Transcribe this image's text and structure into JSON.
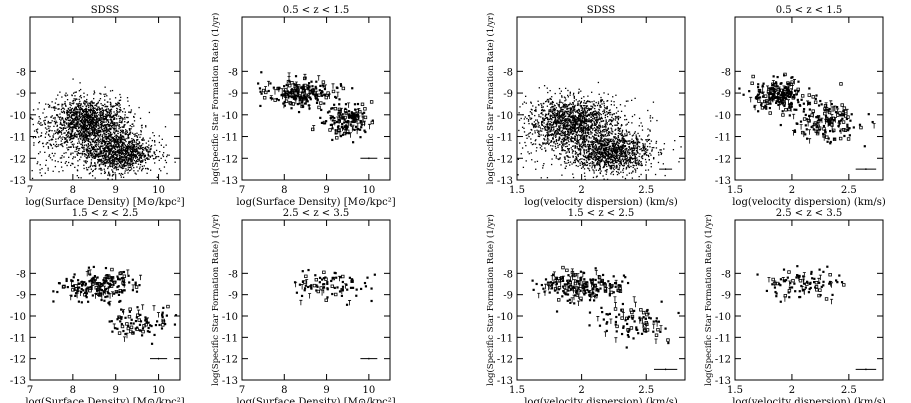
{
  "chart_data": [
    {
      "type": "scatter",
      "id": "p1",
      "title": "SDSS",
      "xlabel": "log(Surface Density) [M⊙/kpc²]",
      "ylabel": "",
      "xlim": [
        7,
        10.5
      ],
      "ylim": [
        -13,
        -5.5
      ],
      "xticks": [
        "7",
        "8",
        "9",
        "10"
      ],
      "yticks": [
        "-8",
        "-9",
        "-10",
        "-11",
        "-12",
        "-13"
      ],
      "ytick_values": [
        -8,
        -9,
        -10,
        -11,
        -12,
        -13
      ],
      "xtick_values": [
        7,
        8,
        9,
        10
      ],
      "clusters": [
        {
          "cx": 8.35,
          "cy": -10.3,
          "sx": 0.45,
          "sy": 0.55,
          "n": 1400
        },
        {
          "cx": 9.05,
          "cy": -11.7,
          "sx": 0.4,
          "sy": 0.45,
          "n": 1100
        },
        {
          "cx": 8.3,
          "cy": -11.3,
          "sx": 0.75,
          "sy": 0.9,
          "n": 500
        }
      ],
      "errorbar": null
    },
    {
      "type": "scatter",
      "id": "p2",
      "title": "0.5 < z < 1.5",
      "xlabel": "log(Surface Density) [M⊙/kpc²]",
      "ylabel": "log(Specific Star Formation Rate) (1/yr)",
      "xlim": [
        7,
        10.5
      ],
      "ylim": [
        -13,
        -5.5
      ],
      "xticks": [
        "7",
        "8",
        "9",
        "10"
      ],
      "yticks": [
        "-8",
        "-9",
        "-10",
        "-11",
        "-12",
        "-13"
      ],
      "ytick_values": [
        -8,
        -9,
        -10,
        -11,
        -12,
        -13
      ],
      "xtick_values": [
        7,
        8,
        9,
        10
      ],
      "clusters": [
        {
          "cx": 8.4,
          "cy": -9.0,
          "sx": 0.4,
          "sy": 0.3,
          "n": 220
        },
        {
          "cx": 9.5,
          "cy": -10.3,
          "sx": 0.3,
          "sy": 0.4,
          "n": 160
        }
      ],
      "errorbar": {
        "x": 10.0,
        "y": -12.0,
        "dx": 0.2,
        "dy": 0.04
      }
    },
    {
      "type": "scatter",
      "id": "p3",
      "title": "1.5 < z < 2.5",
      "xlabel": "log(Surface Density) [M⊙/kpc²]",
      "ylabel": "",
      "xlim": [
        7,
        10.5
      ],
      "ylim": [
        -13,
        -5.5
      ],
      "xticks": [
        "7",
        "8",
        "9",
        "10"
      ],
      "yticks": [
        "-8",
        "-9",
        "-10",
        "-11",
        "-12",
        "-13"
      ],
      "ytick_values": [
        -8,
        -9,
        -10,
        -11,
        -12,
        -13
      ],
      "xtick_values": [
        7,
        8,
        9,
        10
      ],
      "clusters": [
        {
          "cx": 8.6,
          "cy": -8.6,
          "sx": 0.45,
          "sy": 0.35,
          "n": 200
        },
        {
          "cx": 9.6,
          "cy": -10.3,
          "sx": 0.35,
          "sy": 0.4,
          "n": 90
        }
      ],
      "errorbar": {
        "x": 10.0,
        "y": -12.0,
        "dx": 0.2,
        "dy": 0.04
      }
    },
    {
      "type": "scatter",
      "id": "p4",
      "title": "2.5 < z < 3.5",
      "xlabel": "log(Surface Density) [M⊙/kpc²]",
      "ylabel": "log(Specific Star Formation Rate) (1/yr)",
      "xlim": [
        7,
        10.5
      ],
      "ylim": [
        -13,
        -5.5
      ],
      "xticks": [
        "7",
        "8",
        "9",
        "10"
      ],
      "yticks": [
        "-8",
        "-9",
        "-10",
        "-11",
        "-12",
        "-13"
      ],
      "ytick_values": [
        -8,
        -9,
        -10,
        -11,
        -12,
        -13
      ],
      "xtick_values": [
        7,
        8,
        9,
        10
      ],
      "clusters": [
        {
          "cx": 9.0,
          "cy": -8.6,
          "sx": 0.45,
          "sy": 0.4,
          "n": 90
        }
      ],
      "errorbar": {
        "x": 10.0,
        "y": -12.0,
        "dx": 0.2,
        "dy": 0.04
      }
    },
    {
      "type": "scatter",
      "id": "p5",
      "title": "SDSS",
      "xlabel": "log(velocity dispersion) (km/s)",
      "ylabel": "log(Specific Star Formation Rate) (1/yr)",
      "xlim": [
        1.5,
        2.8
      ],
      "ylim": [
        -13,
        -5.5
      ],
      "xticks": [
        "1.5",
        "2",
        "2.5"
      ],
      "yticks": [
        "-8",
        "-9",
        "-10",
        "-11",
        "-12",
        "-13"
      ],
      "ytick_values": [
        -8,
        -9,
        -10,
        -11,
        -12,
        -13
      ],
      "xtick_values": [
        1.5,
        2,
        2.5
      ],
      "clusters": [
        {
          "cx": 1.92,
          "cy": -10.3,
          "sx": 0.17,
          "sy": 0.55,
          "n": 1400
        },
        {
          "cx": 2.22,
          "cy": -11.7,
          "sx": 0.15,
          "sy": 0.45,
          "n": 1100
        },
        {
          "cx": 2.05,
          "cy": -11.2,
          "sx": 0.25,
          "sy": 0.9,
          "n": 500
        }
      ],
      "errorbar": {
        "x": 2.65,
        "y": -12.5,
        "dx": 0.05,
        "dy": 0.04
      }
    },
    {
      "type": "scatter",
      "id": "p6",
      "title": "0.5 < z < 1.5",
      "xlabel": "log(velocity dispersion) (km/s)",
      "ylabel": "",
      "xlim": [
        1.5,
        2.8
      ],
      "ylim": [
        -13,
        -5.5
      ],
      "xticks": [
        "1.5",
        "2",
        "2.5"
      ],
      "yticks": [
        "-8",
        "-9",
        "-10",
        "-11",
        "-12",
        "-13"
      ],
      "ytick_values": [
        -8,
        -9,
        -10,
        -11,
        -12,
        -13
      ],
      "xtick_values": [
        1.5,
        2,
        2.5
      ],
      "clusters": [
        {
          "cx": 1.9,
          "cy": -9.1,
          "sx": 0.12,
          "sy": 0.35,
          "n": 220
        },
        {
          "cx": 2.3,
          "cy": -10.3,
          "sx": 0.15,
          "sy": 0.45,
          "n": 170
        }
      ],
      "errorbar": {
        "x": 2.65,
        "y": -12.5,
        "dx": 0.09,
        "dy": 0.04
      }
    },
    {
      "type": "scatter",
      "id": "p7",
      "title": "1.5 < z < 2.5",
      "xlabel": "log(velocity dispersion) (km/s)",
      "ylabel": "log(Specific Star Formation Rate) (1/yr)",
      "xlim": [
        1.5,
        2.8
      ],
      "ylim": [
        -13,
        -5.5
      ],
      "xticks": [
        "1.5",
        "2",
        "2.5"
      ],
      "yticks": [
        "-8",
        "-9",
        "-10",
        "-11",
        "-12",
        "-13"
      ],
      "ytick_values": [
        -8,
        -9,
        -10,
        -11,
        -12,
        -13
      ],
      "xtick_values": [
        1.5,
        2,
        2.5
      ],
      "clusters": [
        {
          "cx": 2.0,
          "cy": -8.6,
          "sx": 0.17,
          "sy": 0.35,
          "n": 220
        },
        {
          "cx": 2.4,
          "cy": -10.3,
          "sx": 0.15,
          "sy": 0.4,
          "n": 100
        }
      ],
      "errorbar": {
        "x": 2.65,
        "y": -12.5,
        "dx": 0.09,
        "dy": 0.04
      }
    },
    {
      "type": "scatter",
      "id": "p8",
      "title": "2.5 < z < 3.5",
      "xlabel": "log(velocity dispersion) (km/s)",
      "ylabel": "log(Specific Star Formation Rate) (1/yr)",
      "xlim": [
        1.5,
        2.8
      ],
      "ylim": [
        -13,
        -5.5
      ],
      "xticks": [
        "1.5",
        "2",
        "2.5"
      ],
      "yticks": [
        "-8",
        "-9",
        "-10",
        "-11",
        "-12",
        "-13"
      ],
      "ytick_values": [
        -8,
        -9,
        -10,
        -11,
        -12,
        -13
      ],
      "xtick_values": [
        1.5,
        2,
        2.5
      ],
      "clusters": [
        {
          "cx": 2.1,
          "cy": -8.5,
          "sx": 0.17,
          "sy": 0.35,
          "n": 100
        }
      ],
      "errorbar": {
        "x": 2.65,
        "y": -12.5,
        "dx": 0.09,
        "dy": 0.04
      }
    }
  ]
}
